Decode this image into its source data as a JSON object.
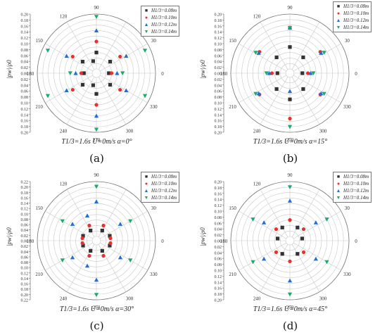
{
  "colors": {
    "s1": "#333333",
    "s2": "#e8312a",
    "s3": "#1f6fd6",
    "s4": "#1fa96c"
  },
  "angle_labels": [
    "0",
    "30",
    "90",
    "120",
    "150",
    "180",
    "210",
    "240",
    "270",
    "300",
    "330"
  ],
  "legend": [
    "H1/3=0.08m",
    "H1/3=0.10m",
    "H1/3=0.12m",
    "H1/3=0.14m"
  ],
  "ylabel": "|pw|/ρ0",
  "chart_data": [
    {
      "type": "scatter",
      "subtitle": "T1/3=1.6s U=0m/s α=0°",
      "caption": "(a)",
      "rlim": [
        0,
        0.2
      ],
      "radial_ticks": [
        "0.20",
        "0.18",
        "0.16",
        "0.14",
        "0.12",
        "0.10",
        "0.08",
        "0.06",
        "0.04",
        "0.02",
        "0.00",
        "0.02",
        "0.04",
        "0.06",
        "0.08",
        "0.10",
        "0.12",
        "0.14",
        "0.16",
        "0.18",
        "0.20"
      ],
      "series": [
        {
          "name": "H1/3=0.08m",
          "points": [
            {
              "theta": 90,
              "r": 0.06
            },
            {
              "theta": 270,
              "r": 0.06
            },
            {
              "theta": 180,
              "r": 0.03
            },
            {
              "theta": 0,
              "r": 0.03
            },
            {
              "theta": 140,
              "r": 0.05
            },
            {
              "theta": 220,
              "r": 0.05
            },
            {
              "theta": 40,
              "r": 0.05
            },
            {
              "theta": 320,
              "r": 0.05
            },
            {
              "theta": 105,
              "r": 0.03
            },
            {
              "theta": 255,
              "r": 0.03
            }
          ]
        },
        {
          "name": "H1/3=0.10m",
          "points": [
            {
              "theta": 90,
              "r": 0.1
            },
            {
              "theta": 270,
              "r": 0.1
            },
            {
              "theta": 180,
              "r": 0.04
            },
            {
              "theta": 0,
              "r": 0.04
            },
            {
              "theta": 145,
              "r": 0.09
            },
            {
              "theta": 215,
              "r": 0.09
            },
            {
              "theta": 35,
              "r": 0.09
            },
            {
              "theta": 325,
              "r": 0.09
            }
          ]
        },
        {
          "name": "H1/3=0.12m",
          "points": [
            {
              "theta": 90,
              "r": 0.14
            },
            {
              "theta": 270,
              "r": 0.14
            },
            {
              "theta": 180,
              "r": 0.06
            },
            {
              "theta": 0,
              "r": 0.06
            },
            {
              "theta": 150,
              "r": 0.11
            },
            {
              "theta": 210,
              "r": 0.11
            },
            {
              "theta": 30,
              "r": 0.11
            },
            {
              "theta": 330,
              "r": 0.11
            }
          ]
        },
        {
          "name": "H1/3=0.14m",
          "points": [
            {
              "theta": 90,
              "r": 0.19
            },
            {
              "theta": 270,
              "r": 0.19
            },
            {
              "theta": 180,
              "r": 0.08
            },
            {
              "theta": 0,
              "r": 0.08
            },
            {
              "theta": 155,
              "r": 0.18
            },
            {
              "theta": 205,
              "r": 0.18
            },
            {
              "theta": 25,
              "r": 0.18
            },
            {
              "theta": 335,
              "r": 0.18
            }
          ]
        }
      ]
    },
    {
      "type": "scatter",
      "subtitle": "T1/3=1.6s U=0m/s α=15°",
      "caption": "(b)",
      "rlim": [
        0,
        0.2
      ],
      "radial_ticks": [
        "0.20",
        "0.18",
        "0.16",
        "0.14",
        "0.12",
        "0.10",
        "0.08",
        "0.06",
        "0.04",
        "0.02",
        "0.00",
        "0.02",
        "0.04",
        "0.06",
        "0.08",
        "0.10",
        "0.12",
        "0.14",
        "0.16",
        "0.18",
        "0.20"
      ],
      "series": [
        {
          "name": "H1/3=0.08m",
          "points": [
            {
              "theta": 90,
              "r": 0.08
            },
            {
              "theta": 270,
              "r": 0.08
            },
            {
              "theta": 180,
              "r": 0.03
            },
            {
              "theta": 0,
              "r": 0.03
            },
            {
              "theta": 130,
              "r": 0.06
            },
            {
              "theta": 230,
              "r": 0.06
            },
            {
              "theta": 50,
              "r": 0.06
            },
            {
              "theta": 310,
              "r": 0.06
            }
          ]
        },
        {
          "name": "H1/3=0.10m",
          "points": [
            {
              "theta": 90,
              "r": 0.15
            },
            {
              "theta": 270,
              "r": 0.15
            },
            {
              "theta": 180,
              "r": 0.05
            },
            {
              "theta": 0,
              "r": 0.05
            },
            {
              "theta": 145,
              "r": 0.12
            },
            {
              "theta": 215,
              "r": 0.12
            },
            {
              "theta": 35,
              "r": 0.12
            },
            {
              "theta": 325,
              "r": 0.12
            }
          ]
        },
        {
          "name": "H1/3=0.12m",
          "points": [
            {
              "theta": 90,
              "r": 0.15
            },
            {
              "theta": 270,
              "r": 0.05
            },
            {
              "theta": 180,
              "r": 0.06
            },
            {
              "theta": 0,
              "r": 0.06
            },
            {
              "theta": 147,
              "r": 0.12
            },
            {
              "theta": 213,
              "r": 0.12
            },
            {
              "theta": 33,
              "r": 0.12
            },
            {
              "theta": 327,
              "r": 0.12
            }
          ]
        },
        {
          "name": "H1/3=0.14m",
          "points": [
            {
              "theta": 90,
              "r": 0.15
            },
            {
              "theta": 270,
              "r": 0.18
            },
            {
              "theta": 180,
              "r": 0.07
            },
            {
              "theta": 0,
              "r": 0.07
            },
            {
              "theta": 149,
              "r": 0.13
            },
            {
              "theta": 211,
              "r": 0.13
            },
            {
              "theta": 31,
              "r": 0.13
            },
            {
              "theta": 329,
              "r": 0.13
            }
          ]
        }
      ]
    },
    {
      "type": "scatter",
      "subtitle": "T1/3=1.6s U=0m/s α=30°",
      "caption": "(c)",
      "rlim": [
        0,
        0.22
      ],
      "radial_ticks": [
        "0.22",
        "0.20",
        "0.18",
        "0.16",
        "0.14",
        "0.12",
        "0.10",
        "0.08",
        "0.06",
        "0.04",
        "0.02",
        "0.00",
        "0.02",
        "0.04",
        "0.06",
        "0.08",
        "0.10",
        "0.12",
        "0.14",
        "0.16",
        "0.18",
        "0.20",
        "0.22"
      ],
      "series": [
        {
          "name": "H1/3=0.08m",
          "points": [
            {
              "theta": 60,
              "r": 0.03
            },
            {
              "theta": 120,
              "r": 0.03
            },
            {
              "theta": 240,
              "r": 0.03
            },
            {
              "theta": 300,
              "r": 0.03
            },
            {
              "theta": 160,
              "r": 0.04
            },
            {
              "theta": 200,
              "r": 0.04
            },
            {
              "theta": 20,
              "r": 0.04
            },
            {
              "theta": 340,
              "r": 0.04
            }
          ]
        },
        {
          "name": "H1/3=0.10m",
          "points": [
            {
              "theta": 65,
              "r": 0.05
            },
            {
              "theta": 115,
              "r": 0.05
            },
            {
              "theta": 245,
              "r": 0.05
            },
            {
              "theta": 295,
              "r": 0.05
            },
            {
              "theta": 170,
              "r": 0.04
            },
            {
              "theta": 190,
              "r": 0.04
            },
            {
              "theta": 10,
              "r": 0.04
            },
            {
              "theta": 350,
              "r": 0.04
            }
          ]
        },
        {
          "name": "H1/3=0.12m",
          "points": [
            {
              "theta": 90,
              "r": 0.14
            },
            {
              "theta": 270,
              "r": 0.14
            },
            {
              "theta": 145,
              "r": 0.1
            },
            {
              "theta": 215,
              "r": 0.1
            },
            {
              "theta": 35,
              "r": 0.1
            },
            {
              "theta": 325,
              "r": 0.1
            },
            {
              "theta": 110,
              "r": 0.09
            },
            {
              "theta": 250,
              "r": 0.09
            }
          ]
        },
        {
          "name": "H1/3=0.14m",
          "points": [
            {
              "theta": 90,
              "r": 0.2
            },
            {
              "theta": 270,
              "r": 0.2
            },
            {
              "theta": 150,
              "r": 0.14
            },
            {
              "theta": 210,
              "r": 0.14
            },
            {
              "theta": 30,
              "r": 0.14
            },
            {
              "theta": 330,
              "r": 0.14
            }
          ]
        }
      ]
    },
    {
      "type": "scatter",
      "subtitle": "T1/3=1.6s U=0m/s α=45°",
      "caption": "(d)",
      "rlim": [
        0,
        0.2
      ],
      "radial_ticks": [
        "0.20",
        "0.18",
        "0.16",
        "0.14",
        "0.12",
        "0.10",
        "0.08",
        "0.06",
        "0.04",
        "0.02",
        "0.00",
        "0.02",
        "0.04",
        "0.06",
        "0.08",
        "0.10",
        "0.12",
        "0.14",
        "0.16",
        "0.18",
        "0.20"
      ],
      "series": [
        {
          "name": "H1/3=0.08m",
          "points": [
            {
              "theta": 60,
              "r": 0.04
            },
            {
              "theta": 120,
              "r": 0.04
            },
            {
              "theta": 240,
              "r": 0.04
            },
            {
              "theta": 300,
              "r": 0.04
            },
            {
              "theta": 170,
              "r": 0.03
            },
            {
              "theta": 10,
              "r": 0.03
            }
          ]
        },
        {
          "name": "H1/3=0.10m",
          "points": [
            {
              "theta": 90,
              "r": 0.06
            },
            {
              "theta": 270,
              "r": 0.06
            },
            {
              "theta": 140,
              "r": 0.05
            },
            {
              "theta": 220,
              "r": 0.05
            },
            {
              "theta": 40,
              "r": 0.05
            },
            {
              "theta": 320,
              "r": 0.05
            }
          ]
        },
        {
          "name": "H1/3=0.12m",
          "points": [
            {
              "theta": 90,
              "r": 0.13
            },
            {
              "theta": 270,
              "r": 0.13
            },
            {
              "theta": 145,
              "r": 0.1
            },
            {
              "theta": 215,
              "r": 0.1
            },
            {
              "theta": 35,
              "r": 0.1
            },
            {
              "theta": 325,
              "r": 0.1
            }
          ]
        },
        {
          "name": "H1/3=0.14m",
          "points": [
            {
              "theta": 90,
              "r": 0.18
            },
            {
              "theta": 270,
              "r": 0.18
            },
            {
              "theta": 150,
              "r": 0.14
            },
            {
              "theta": 210,
              "r": 0.14
            },
            {
              "theta": 30,
              "r": 0.14
            },
            {
              "theta": 330,
              "r": 0.14
            }
          ]
        }
      ]
    }
  ]
}
